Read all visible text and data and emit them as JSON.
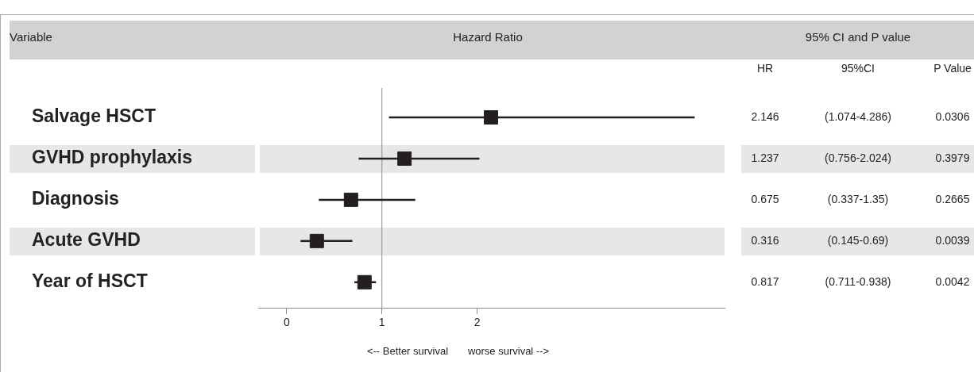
{
  "chart_data": {
    "type": "scatter",
    "orientation": "horizontal",
    "categories": [
      "Salvage HSCT",
      "GVHD prophylaxis",
      "Diagnosis",
      "Acute GVHD",
      "Year of HSCT"
    ],
    "values": [
      2.146,
      1.237,
      0.675,
      0.316,
      0.817
    ],
    "errors": [
      [
        1.074,
        4.286
      ],
      [
        0.756,
        2.024
      ],
      [
        0.337,
        1.35
      ],
      [
        0.145,
        0.69
      ],
      [
        0.711,
        0.938
      ]
    ],
    "color": "#231f20",
    "marker": "square",
    "data_labels": true,
    "xlim": [
      -0.3,
      4.6
    ],
    "xticks": [
      0,
      1,
      2
    ],
    "grid": false,
    "legend": false,
    "ref_lines": [
      {
        "axis": "x",
        "value": 1,
        "color": "#8c8c8c"
      }
    ],
    "annotations": [
      "Variable",
      "Hazard Ratio",
      "95% CI and P value",
      "HR",
      "95%CI",
      "P Value",
      "<-- Better survival",
      "worse survival -->",
      "(1.074-4.286)",
      "0.0306",
      "(0.756-2.024)",
      "0.3979",
      "(0.337-1.35)",
      "0.2665",
      "(0.145-0.69)",
      "0.0039",
      "(0.711-0.938)",
      "0.0042"
    ]
  }
}
